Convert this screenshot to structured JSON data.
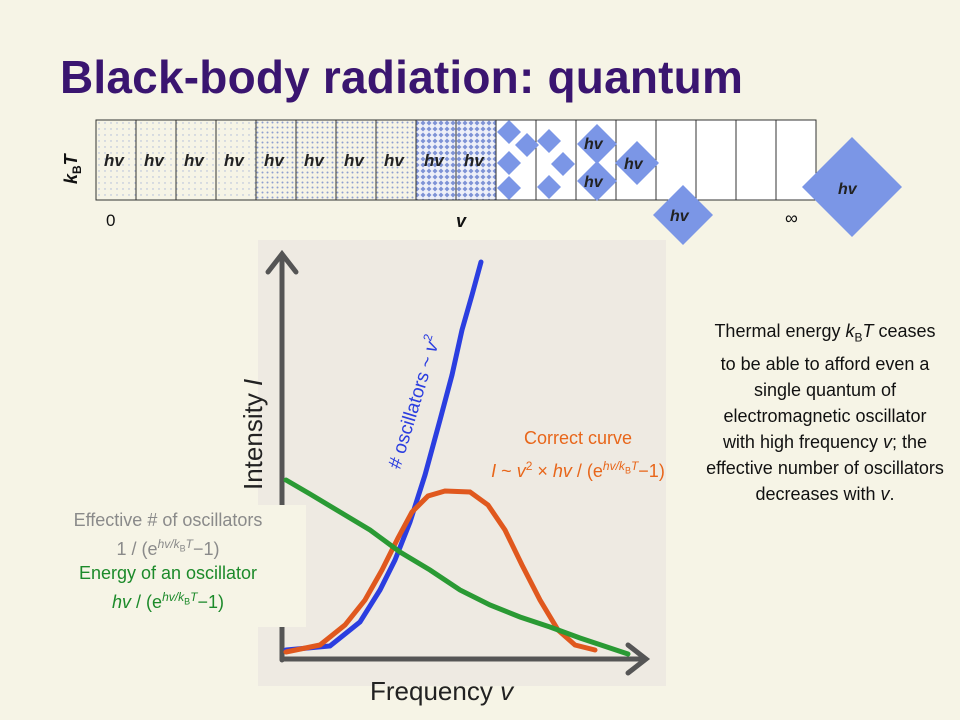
{
  "title": "Black-body radiation: quantum",
  "energy_strip": {
    "kbt_label": "k",
    "kbt_sub": "B",
    "kbt_T": "T",
    "quantum_label": "hv",
    "axis_zero": "0",
    "axis_nu": "v",
    "axis_inf": "∞"
  },
  "plot": {
    "ylabel_main": "Intensity ",
    "ylabel_var": "I",
    "xlabel_main": "Frequency ",
    "xlabel_var": "v",
    "blue_label_a": "# oscillators ~ ",
    "blue_label_nu": "v",
    "blue_label_exp": "2",
    "correct_title": "Correct curve",
    "correct_formula_a": "I",
    "correct_formula_b": " ~ ",
    "correct_formula_nu": "v",
    "correct_formula_exp": "2",
    "correct_formula_c": " × ",
    "correct_formula_hv": "hv",
    "correct_formula_d": " / (e",
    "correct_formula_sup": "hv/k",
    "correct_formula_supB": "B",
    "correct_formula_supT": "T",
    "correct_formula_e": "−1)"
  },
  "panel": {
    "line1": "Effective # of oscillators",
    "line2_a": "1 / (e",
    "line2_sup": "hv/k",
    "line2_supB": "B",
    "line2_supT": "T",
    "line2_b": "−1)",
    "line3": "Energy of an oscillator",
    "line4_hv": "hv",
    "line4_a": " / (e",
    "line4_sup": "hv/k",
    "line4_supB": "B",
    "line4_supT": "T",
    "line4_b": "−1)"
  },
  "side_text_a": "Thermal energy ",
  "side_text_k": "k",
  "side_text_B": "B",
  "side_text_T": "T",
  "side_text_b": " ceases to be able to afford even a single quantum of electromagnetic oscillator with high frequency ",
  "side_text_nu": "v",
  "side_text_c": "; the effective number of oscillators decreases with ",
  "side_text_nu2": "v",
  "side_text_d": ".",
  "colors": {
    "title": "#3a1570",
    "diamond": "#7b96e6",
    "blue_curve": "#2b3ee0",
    "orange_curve": "#e0581e",
    "green_curve": "#2a9a34"
  }
}
